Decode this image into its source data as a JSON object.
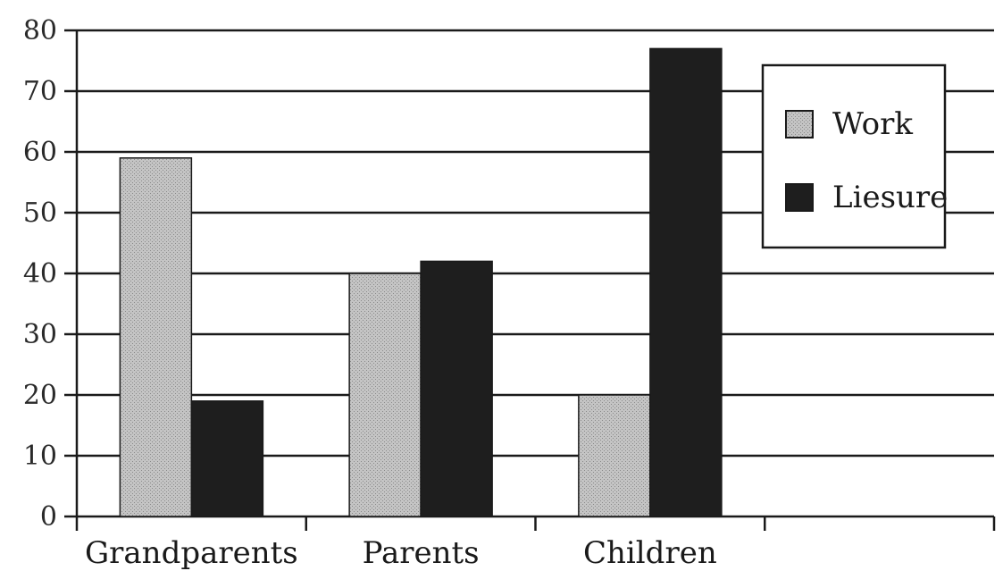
{
  "chart_data": {
    "type": "bar",
    "title": "",
    "xlabel": "",
    "ylabel": "",
    "categories": [
      "Grandparents",
      "Parents",
      "Children"
    ],
    "series": [
      {
        "name": "Work",
        "values": [
          59,
          40,
          20
        ],
        "color": "#b8b8b8"
      },
      {
        "name": "Liesure",
        "values": [
          19,
          42,
          77
        ],
        "color": "#1e1e1e"
      }
    ],
    "ylim": [
      0,
      80
    ],
    "yticks": [
      0,
      10,
      20,
      30,
      40,
      50,
      60,
      70,
      80
    ],
    "grid": true,
    "legend_position": "top-right"
  }
}
